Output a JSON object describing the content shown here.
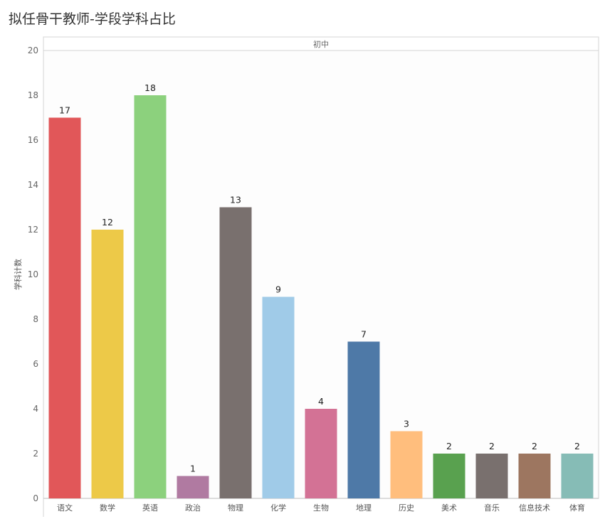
{
  "chart_data": {
    "type": "bar",
    "title": "拟任骨干教师-学段学科占比",
    "panel": "初中",
    "ylabel": "学科计数",
    "xlabel": "",
    "ylim": [
      0,
      20
    ],
    "yticks": [
      0,
      2,
      4,
      6,
      8,
      10,
      12,
      14,
      16,
      18,
      20
    ],
    "grid": true,
    "categories": [
      "语文",
      "数学",
      "英语",
      "政治",
      "物理",
      "化学",
      "生物",
      "地理",
      "历史",
      "美术",
      "音乐",
      "信息技术",
      "体育"
    ],
    "values": [
      17,
      12,
      18,
      1,
      13,
      9,
      4,
      7,
      3,
      2,
      2,
      2,
      2
    ],
    "colors": [
      "#E15759",
      "#EDC948",
      "#8CD17D",
      "#B07AA1",
      "#79706E",
      "#A0CBE8",
      "#D37295",
      "#4E79A7",
      "#FFBE7D",
      "#59A14F",
      "#79706E",
      "#9D7660",
      "#86BCB6"
    ]
  }
}
